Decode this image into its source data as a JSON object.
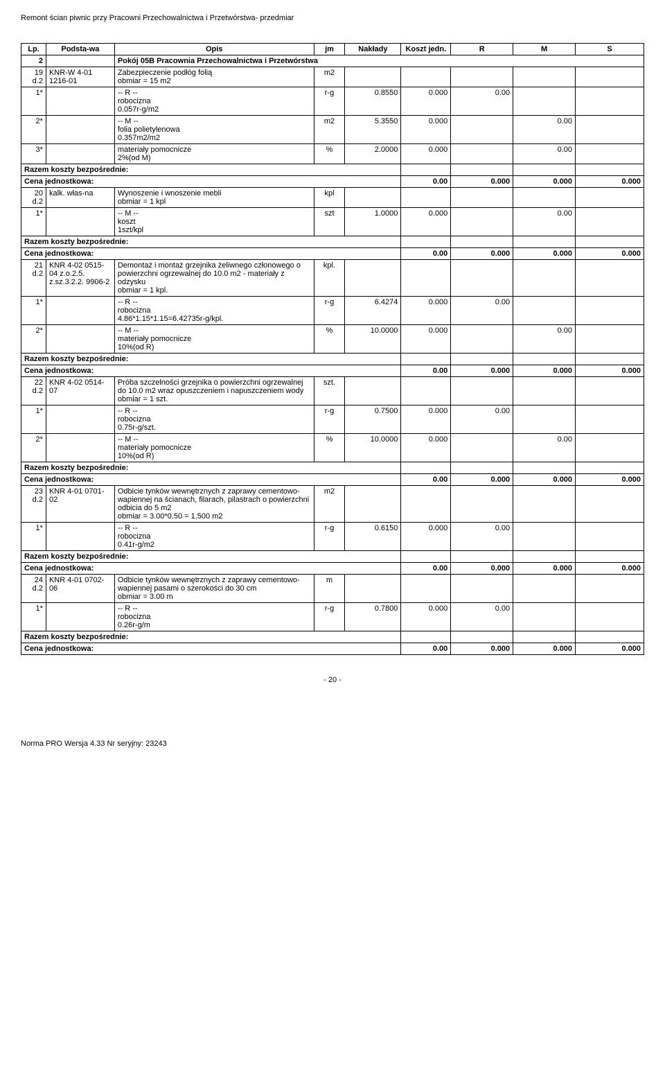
{
  "doc_title": "Remont ścian piwnic przy Pracowni Przechowalnictwa i Przetwórstwa- przedmiar",
  "columns": {
    "lp": "Lp.",
    "podstawa": "Podsta-wa",
    "opis": "Opis",
    "jm": "jm",
    "naklady": "Nakłady",
    "koszt": "Koszt jedn.",
    "r": "R",
    "m": "M",
    "s": "S"
  },
  "section": {
    "num": "2",
    "title": "Pokój 05B Pracownia Przechowalnictwa i Przetwórstwa"
  },
  "rows": [
    {
      "lp": "19 d.2",
      "podstawa": "KNR-W 4-01 1216-01",
      "opis": "Zabezpieczenie podłóg folią\nobmiar  = 15 m2",
      "jm": "m2"
    },
    {
      "lp": "1*",
      "opis": "-- R --\nrobocizna\n0.057r-g/m2",
      "jm": "r-g",
      "naklady": "0.8550",
      "koszt": "0.000",
      "r": "0.00"
    },
    {
      "lp": "2*",
      "opis": "-- M --\nfolia polietylenowa\n0.357m2/m2",
      "jm": "m2",
      "naklady": "5.3550",
      "koszt": "0.000",
      "m": "0.00"
    },
    {
      "lp": "3*",
      "opis": "materiały pomocnicze\n2%(od M)",
      "jm": "%",
      "naklady": "2.0000",
      "koszt": "0.000",
      "m": "0.00"
    },
    {
      "razem": true,
      "label": "Razem koszty bezpośrednie:",
      "cena_label": "Cena jednostkowa:",
      "cena": "0.00",
      "r": "0.000",
      "m": "0.000",
      "s": "0.000"
    },
    {
      "lp": "20 d.2",
      "podstawa": "kalk. włas-na",
      "opis": "Wynoszenie i wnoszenie mebli\nobmiar  = 1  kpl",
      "jm": "kpl"
    },
    {
      "lp": "1*",
      "opis": "-- M --\nkoszt\n1szt/kpl",
      "jm": "szt",
      "naklady": "1.0000",
      "koszt": "0.000",
      "m": "0.00"
    },
    {
      "razem": true,
      "label": "Razem koszty bezpośrednie:",
      "cena_label": "Cena jednostkowa:",
      "cena": "0.00",
      "r": "0.000",
      "m": "0.000",
      "s": "0.000"
    },
    {
      "lp": "21 d.2",
      "podstawa": "KNR 4-02 0515-04 z.o.2.5. z.sz.3.2.2. 9906-2",
      "opis": "Demontaż i montaż grzejnika żeliwnego członowego o powierzchni ogrzewalnej do 10.0 m2 - materiały z odzysku\nobmiar  = 1  kpl.",
      "jm": "kpl."
    },
    {
      "lp": "1*",
      "opis": "-- R --\nrobocizna\n4.86*1.15*1.15=6.42735r-g/kpl.",
      "jm": "r-g",
      "naklady": "6.4274",
      "koszt": "0.000",
      "r": "0.00"
    },
    {
      "lp": "2*",
      "opis": "-- M --\nmateriały pomocnicze\n10%(od R)",
      "jm": "%",
      "naklady": "10.0000",
      "koszt": "0.000",
      "m": "0.00"
    },
    {
      "razem": true,
      "label": "Razem koszty bezpośrednie:",
      "cena_label": "Cena jednostkowa:",
      "cena": "0.00",
      "r": "0.000",
      "m": "0.000",
      "s": "0.000"
    },
    {
      "lp": "22 d.2",
      "podstawa": "KNR 4-02 0514-07",
      "opis": "Próba szczelności grzejnika o powierzchni ogrzewalnej do 10.0 m2 wraz opuszczeniem i napuszczeniem wody\nobmiar  = 1 szt.",
      "jm": "szt."
    },
    {
      "lp": "1*",
      "opis": "-- R --\nrobocizna\n0.75r-g/szt.",
      "jm": "r-g",
      "naklady": "0.7500",
      "koszt": "0.000",
      "r": "0.00"
    },
    {
      "lp": "2*",
      "opis": "-- M --\nmateriały pomocnicze\n10%(od R)",
      "jm": "%",
      "naklady": "10.0000",
      "koszt": "0.000",
      "m": "0.00"
    },
    {
      "razem": true,
      "label": "Razem koszty bezpośrednie:",
      "cena_label": "Cena jednostkowa:",
      "cena": "0.00",
      "r": "0.000",
      "m": "0.000",
      "s": "0.000"
    },
    {
      "lp": "23 d.2",
      "podstawa": "KNR 4-01 0701-02",
      "opis": "Odbicie tynków wewnętrznych z zaprawy cementowo-wapiennej na ścianach, filarach, pilastrach o powierzchni odbicia do 5 m2\nobmiar  = 3.00*0.50 = 1.500 m2",
      "jm": "m2"
    },
    {
      "lp": "1*",
      "opis": "-- R --\nrobocizna\n0.41r-g/m2",
      "jm": "r-g",
      "naklady": "0.6150",
      "koszt": "0.000",
      "r": "0.00"
    },
    {
      "razem": true,
      "label": "Razem koszty bezpośrednie:",
      "cena_label": "Cena jednostkowa:",
      "cena": "0.00",
      "r": "0.000",
      "m": "0.000",
      "s": "0.000"
    },
    {
      "lp": "24 d.2",
      "podstawa": "KNR 4-01 0702-06",
      "opis": "Odbicie tynków wewnętrznych z zaprawy cementowo-wapiennej pasami o szerokości do 30 cm\nobmiar  = 3.00  m",
      "jm": "m"
    },
    {
      "lp": "1*",
      "opis": "-- R --\nrobocizna\n0.26r-g/m",
      "jm": "r-g",
      "naklady": "0.7800",
      "koszt": "0.000",
      "r": "0.00"
    },
    {
      "razem": true,
      "label": "Razem koszty bezpośrednie:",
      "cena_label": "Cena jednostkowa:",
      "cena": "0.00",
      "r": "0.000",
      "m": "0.000",
      "s": "0.000"
    }
  ],
  "page_num": "- 20 -",
  "footer_text": "Norma PRO Wersja 4.33 Nr seryjny: 23243"
}
